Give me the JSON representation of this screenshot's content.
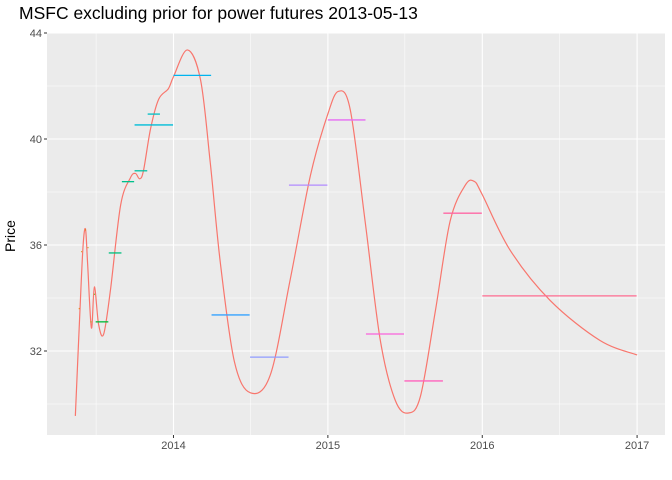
{
  "chart_data": {
    "type": "line",
    "title": "MSFC excluding prior for power futures 2013-05-13",
    "xlabel": "",
    "ylabel": "Price",
    "xlim": [
      "2013-03-08",
      "2017-03-08"
    ],
    "ylim": [
      28.83,
      44.0
    ],
    "x_ticks": [
      "2014",
      "2015",
      "2016",
      "2017"
    ],
    "y_ticks": [
      32,
      36,
      40,
      44
    ],
    "grid": true,
    "curve_color": "#F8766D",
    "curve": [
      [
        "2013-05-14",
        29.55
      ],
      [
        "2013-05-24",
        33.2
      ],
      [
        "2013-06-01",
        35.9
      ],
      [
        "2013-06-07",
        36.6
      ],
      [
        "2013-06-12",
        35.3
      ],
      [
        "2013-06-21",
        32.87
      ],
      [
        "2013-06-28",
        34.42
      ],
      [
        "2013-07-08",
        33.0
      ],
      [
        "2013-07-20",
        32.64
      ],
      [
        "2013-08-05",
        34.3
      ],
      [
        "2013-08-29",
        37.5
      ],
      [
        "2013-09-21",
        38.53
      ],
      [
        "2013-10-03",
        38.7
      ],
      [
        "2013-10-13",
        38.5
      ],
      [
        "2013-10-22",
        38.8
      ],
      [
        "2013-11-08",
        40.4
      ],
      [
        "2013-11-27",
        41.5
      ],
      [
        "2013-12-20",
        41.9
      ],
      [
        "2014-01-01",
        42.35
      ],
      [
        "2014-02-03",
        43.36
      ],
      [
        "2014-03-06",
        42.23
      ],
      [
        "2014-03-29",
        39.1
      ],
      [
        "2014-04-22",
        35.3
      ],
      [
        "2014-05-25",
        31.6
      ],
      [
        "2014-07-02",
        30.42
      ],
      [
        "2014-08-18",
        31.1
      ],
      [
        "2014-10-04",
        34.7
      ],
      [
        "2014-11-21",
        38.64
      ],
      [
        "2014-12-31",
        40.9
      ],
      [
        "2015-01-26",
        41.8
      ],
      [
        "2015-02-23",
        41.1
      ],
      [
        "2015-03-30",
        36.9
      ],
      [
        "2015-05-05",
        32.4
      ],
      [
        "2015-06-09",
        30.15
      ],
      [
        "2015-07-10",
        29.66
      ],
      [
        "2015-08-08",
        30.3
      ],
      [
        "2015-09-12",
        33.5
      ],
      [
        "2015-10-17",
        36.9
      ],
      [
        "2015-11-22",
        38.26
      ],
      [
        "2015-12-13",
        38.4
      ],
      [
        "2016-01-01",
        37.9
      ],
      [
        "2016-03-07",
        35.8
      ],
      [
        "2016-06-10",
        33.9
      ],
      [
        "2016-10-05",
        32.4
      ],
      [
        "2017-01-01",
        31.85
      ]
    ],
    "contracts": [
      {
        "start": "2013-05-22",
        "end": "2013-05-24",
        "price": 33.6,
        "color": "#E58700"
      },
      {
        "start": "2013-05-28",
        "end": "2013-05-30",
        "price": 35.75,
        "color": "#E08B00"
      },
      {
        "start": "2013-06-06",
        "end": "2013-06-08",
        "price": 36.57,
        "color": "#D89000"
      },
      {
        "start": "2013-06-12",
        "end": "2013-06-14",
        "price": 35.9,
        "color": "#C99800"
      },
      {
        "start": "2013-06-19",
        "end": "2013-06-21",
        "price": 33.1,
        "color": "#A3A500"
      },
      {
        "start": "2013-06-27",
        "end": "2013-06-29",
        "price": 34.14,
        "color": "#6BB100"
      },
      {
        "start": "2013-07-01",
        "end": "2013-07-31",
        "price": 33.1,
        "color": "#00BA38"
      },
      {
        "start": "2013-08-01",
        "end": "2013-08-31",
        "price": 35.7,
        "color": "#00BF7D"
      },
      {
        "start": "2013-09-01",
        "end": "2013-09-30",
        "price": 38.39,
        "color": "#00C08B"
      },
      {
        "start": "2013-10-01",
        "end": "2013-10-31",
        "price": 38.8,
        "color": "#00C1A3"
      },
      {
        "start": "2013-11-01",
        "end": "2013-11-30",
        "price": 40.94,
        "color": "#00BFC4"
      },
      {
        "start": "2013-10-01",
        "end": "2013-12-31",
        "price": 40.53,
        "color": "#00BCD8"
      },
      {
        "start": "2014-01-01",
        "end": "2014-03-31",
        "price": 42.4,
        "color": "#00B4EF"
      },
      {
        "start": "2014-04-01",
        "end": "2014-06-30",
        "price": 33.36,
        "color": "#35A2FF"
      },
      {
        "start": "2014-07-01",
        "end": "2014-09-30",
        "price": 31.77,
        "color": "#8F9BFF"
      },
      {
        "start": "2014-10-01",
        "end": "2014-12-31",
        "price": 38.26,
        "color": "#B28BFF"
      },
      {
        "start": "2015-01-01",
        "end": "2015-03-31",
        "price": 40.72,
        "color": "#E76BF3"
      },
      {
        "start": "2015-04-01",
        "end": "2015-06-30",
        "price": 32.64,
        "color": "#FA62DB"
      },
      {
        "start": "2015-07-01",
        "end": "2015-09-30",
        "price": 30.87,
        "color": "#FF62BC"
      },
      {
        "start": "2015-10-01",
        "end": "2015-12-31",
        "price": 37.2,
        "color": "#FF67A4"
      },
      {
        "start": "2016-01-01",
        "end": "2016-12-31",
        "price": 34.08,
        "color": "#FF6C91"
      }
    ]
  }
}
